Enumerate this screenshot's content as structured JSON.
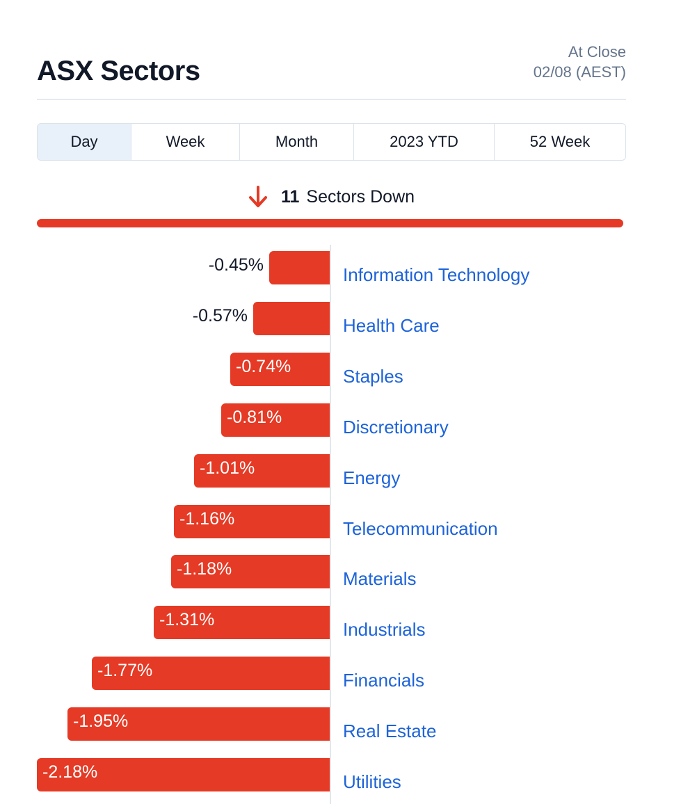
{
  "header": {
    "title": "ASX Sectors",
    "status_line1": "At Close",
    "status_line2": "02/08 (AEST)"
  },
  "tabs": [
    {
      "label": "Day",
      "active": true
    },
    {
      "label": "Week",
      "active": false
    },
    {
      "label": "Month",
      "active": false
    },
    {
      "label": "2023 YTD",
      "active": false
    },
    {
      "label": "52 Week",
      "active": false
    }
  ],
  "summary": {
    "icon": "arrow-down-icon",
    "count": "11",
    "text": "Sectors Down",
    "breadth_down_fraction": 1.0
  },
  "colors": {
    "down": "#e53a25",
    "link": "#1d63d9",
    "active_tab": "#e8f0fa"
  },
  "chart_data": {
    "type": "bar",
    "orientation": "horizontal",
    "categories": [
      "Information Technology",
      "Health Care",
      "Staples",
      "Discretionary",
      "Energy",
      "Telecommunication",
      "Materials",
      "Industrials",
      "Financials",
      "Real Estate",
      "Utilities"
    ],
    "values": [
      -0.45,
      -0.57,
      -0.74,
      -0.81,
      -1.01,
      -1.16,
      -1.18,
      -1.31,
      -1.77,
      -1.95,
      -2.18
    ],
    "labels": [
      "-0.45%",
      "-0.57%",
      "-0.74%",
      "-0.81%",
      "-1.01%",
      "-1.16%",
      "-1.18%",
      "-1.31%",
      "-1.77%",
      "-1.95%",
      "-2.18%"
    ],
    "xlim": [
      -2.18,
      0
    ],
    "unit": "%"
  }
}
